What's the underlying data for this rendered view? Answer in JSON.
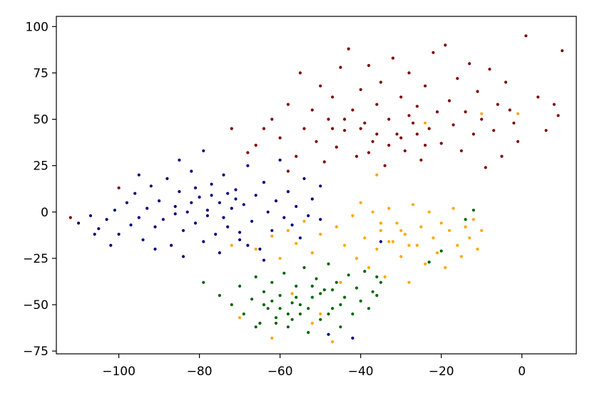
{
  "chart_data": {
    "type": "scatter",
    "title": "",
    "xlabel": "",
    "ylabel": "",
    "xlim": [
      -115.5,
      13.5
    ],
    "ylim": [
      -76.5,
      105.5
    ],
    "xticks": [
      -100,
      -80,
      -60,
      -40,
      -20,
      0
    ],
    "yticks": [
      -75,
      -50,
      -25,
      0,
      25,
      50,
      75,
      100
    ],
    "xtick_labels": [
      "−100",
      "−80",
      "−60",
      "−40",
      "−20",
      "0"
    ],
    "ytick_labels": [
      "−75",
      "−50",
      "−25",
      "0",
      "25",
      "50",
      "75",
      "100"
    ],
    "grid": false,
    "legend": "none",
    "series": [
      {
        "color": "#00007f",
        "points": [
          [
            -110,
            -6
          ],
          [
            -107,
            -2
          ],
          [
            -105,
            -9
          ],
          [
            -103,
            -4
          ],
          [
            -101,
            1
          ],
          [
            -100,
            -12
          ],
          [
            -98,
            5
          ],
          [
            -97,
            -7
          ],
          [
            -96,
            10
          ],
          [
            -95,
            -3
          ],
          [
            -94,
            -15
          ],
          [
            -93,
            2
          ],
          [
            -92,
            14
          ],
          [
            -91,
            -8
          ],
          [
            -90,
            6
          ],
          [
            -89,
            -4
          ],
          [
            -88,
            18
          ],
          [
            -87,
            -18
          ],
          [
            -86,
            3
          ],
          [
            -85,
            11
          ],
          [
            -84,
            -10
          ],
          [
            -83,
            0
          ],
          [
            -82,
            22
          ],
          [
            -81,
            -6
          ],
          [
            -80,
            8
          ],
          [
            -79,
            33
          ],
          [
            -78,
            -2
          ],
          [
            -77,
            15
          ],
          [
            -76,
            -12
          ],
          [
            -75,
            5
          ],
          [
            -74,
            20
          ],
          [
            -73,
            -8
          ],
          [
            -72,
            2
          ],
          [
            -71,
            12
          ],
          [
            -70,
            -15
          ],
          [
            -69,
            4
          ],
          [
            -68,
            25
          ],
          [
            -67,
            -5
          ],
          [
            -66,
            9
          ],
          [
            -65,
            -20
          ],
          [
            -64,
            16
          ],
          [
            -63,
            0
          ],
          [
            -62,
            -10
          ],
          [
            -61,
            6
          ],
          [
            -60,
            28
          ],
          [
            -59,
            -3
          ],
          [
            -58,
            11
          ],
          [
            -57,
            -7
          ],
          [
            -56,
            3
          ],
          [
            -55,
            -14
          ],
          [
            -54,
            18
          ],
          [
            -53,
            -2
          ],
          [
            -52,
            7
          ],
          [
            -50,
            -4
          ],
          [
            -48,
            -66
          ],
          [
            -42,
            -68
          ],
          [
            -35,
            -16
          ],
          [
            -50,
            14
          ],
          [
            -85,
            28
          ],
          [
            -95,
            20
          ],
          [
            -106,
            -12
          ],
          [
            -102,
            -18
          ],
          [
            -91,
            -20
          ],
          [
            -84,
            -24
          ],
          [
            -79,
            -16
          ],
          [
            -75,
            -22
          ],
          [
            -70,
            -11
          ],
          [
            -68,
            -18
          ],
          [
            -64,
            -26
          ],
          [
            -86,
            -1
          ],
          [
            -82,
            5
          ],
          [
            -78,
            1
          ],
          [
            -74,
            -3
          ],
          [
            -71,
            7
          ],
          [
            -77,
            9
          ],
          [
            -81,
            13
          ],
          [
            -73,
            10
          ]
        ]
      },
      {
        "color": "#7f0000",
        "points": [
          [
            -112,
            -3
          ],
          [
            -100,
            13
          ],
          [
            -68,
            32
          ],
          [
            -66,
            36
          ],
          [
            -64,
            45
          ],
          [
            -62,
            50
          ],
          [
            -60,
            40
          ],
          [
            -58,
            58
          ],
          [
            -56,
            30
          ],
          [
            -55,
            75
          ],
          [
            -54,
            45
          ],
          [
            -52,
            55
          ],
          [
            -51,
            38
          ],
          [
            -50,
            68
          ],
          [
            -49,
            27
          ],
          [
            -48,
            50
          ],
          [
            -47,
            62
          ],
          [
            -46,
            35
          ],
          [
            -45,
            78
          ],
          [
            -44,
            44
          ],
          [
            -43,
            88
          ],
          [
            -42,
            55
          ],
          [
            -41,
            30
          ],
          [
            -40,
            66
          ],
          [
            -39,
            48
          ],
          [
            -38,
            79
          ],
          [
            -37,
            38
          ],
          [
            -36,
            58
          ],
          [
            -35,
            70
          ],
          [
            -34,
            25
          ],
          [
            -33,
            50
          ],
          [
            -32,
            83
          ],
          [
            -31,
            42
          ],
          [
            -30,
            62
          ],
          [
            -29,
            33
          ],
          [
            -28,
            75
          ],
          [
            -27,
            48
          ],
          [
            -26,
            57
          ],
          [
            -25,
            28
          ],
          [
            -24,
            68
          ],
          [
            -23,
            45
          ],
          [
            -22,
            86
          ],
          [
            -21,
            54
          ],
          [
            -20,
            37
          ],
          [
            -19,
            90
          ],
          [
            -18,
            60
          ],
          [
            -17,
            47
          ],
          [
            -16,
            72
          ],
          [
            -15,
            33
          ],
          [
            -14,
            54
          ],
          [
            -13,
            80
          ],
          [
            -12,
            42
          ],
          [
            -11,
            65
          ],
          [
            -10,
            50
          ],
          [
            -9,
            24
          ],
          [
            -8,
            77
          ],
          [
            -7,
            44
          ],
          [
            -6,
            58
          ],
          [
            -5,
            30
          ],
          [
            -4,
            70
          ],
          [
            -3,
            55
          ],
          [
            -2,
            48
          ],
          [
            -1,
            38
          ],
          [
            1,
            95
          ],
          [
            4,
            62
          ],
          [
            6,
            44
          ],
          [
            8,
            58
          ],
          [
            9,
            52
          ],
          [
            10,
            87
          ],
          [
            -72,
            45
          ],
          [
            -58,
            22
          ],
          [
            -40,
            45
          ],
          [
            -36,
            42
          ],
          [
            -30,
            40
          ],
          [
            -28,
            52
          ],
          [
            -24,
            36
          ],
          [
            -38,
            32
          ],
          [
            -33,
            36
          ],
          [
            -26,
            42
          ],
          [
            -44,
            50
          ],
          [
            -47,
            45
          ]
        ]
      },
      {
        "color": "#ffa500",
        "points": [
          [
            -72,
            -18
          ],
          [
            -66,
            -20
          ],
          [
            -62,
            -13
          ],
          [
            -60,
            -25
          ],
          [
            -58,
            -10
          ],
          [
            -56,
            -17
          ],
          [
            -54,
            -5
          ],
          [
            -52,
            -22
          ],
          [
            -50,
            -12
          ],
          [
            -48,
            -28
          ],
          [
            -46,
            -8
          ],
          [
            -44,
            -18
          ],
          [
            -42,
            -2
          ],
          [
            -41,
            -25
          ],
          [
            -40,
            5
          ],
          [
            -39,
            -14
          ],
          [
            -38,
            -30
          ],
          [
            -37,
            0
          ],
          [
            -36,
            -20
          ],
          [
            -35,
            -10
          ],
          [
            -34,
            -35
          ],
          [
            -33,
            2
          ],
          [
            -32,
            -16
          ],
          [
            -31,
            -6
          ],
          [
            -30,
            -24
          ],
          [
            -29,
            -12
          ],
          [
            -28,
            -38
          ],
          [
            -27,
            4
          ],
          [
            -26,
            -18
          ],
          [
            -25,
            -8
          ],
          [
            -24,
            -28
          ],
          [
            -23,
            0
          ],
          [
            -22,
            -14
          ],
          [
            -21,
            -22
          ],
          [
            -20,
            -6
          ],
          [
            -19,
            -30
          ],
          [
            -18,
            -10
          ],
          [
            -17,
            2
          ],
          [
            -16,
            -18
          ],
          [
            -15,
            -24
          ],
          [
            -14,
            -8
          ],
          [
            -13,
            -14
          ],
          [
            -12,
            -4
          ],
          [
            -11,
            -20
          ],
          [
            -10,
            -10
          ],
          [
            -62,
            -68
          ],
          [
            -47,
            -70
          ],
          [
            -36,
            20
          ],
          [
            -24,
            48
          ],
          [
            -10,
            53
          ],
          [
            -1,
            53
          ],
          [
            -70,
            -57
          ],
          [
            -52,
            -60
          ],
          [
            -57,
            -44
          ],
          [
            -45,
            -38
          ],
          [
            -50,
            -55
          ],
          [
            -33,
            -16
          ],
          [
            -30,
            -10
          ],
          [
            -28,
            -18
          ],
          [
            -35,
            -6
          ]
        ]
      },
      {
        "color": "#006400",
        "points": [
          [
            -79,
            -38
          ],
          [
            -75,
            -45
          ],
          [
            -72,
            -50
          ],
          [
            -70,
            -40
          ],
          [
            -69,
            -55
          ],
          [
            -67,
            -47
          ],
          [
            -66,
            -35
          ],
          [
            -65,
            -60
          ],
          [
            -64,
            -43
          ],
          [
            -63,
            -52
          ],
          [
            -62,
            -38
          ],
          [
            -61,
            -57
          ],
          [
            -60,
            -45
          ],
          [
            -59,
            -33
          ],
          [
            -58,
            -62
          ],
          [
            -57,
            -49
          ],
          [
            -56,
            -40
          ],
          [
            -55,
            -55
          ],
          [
            -54,
            -30
          ],
          [
            -53,
            -65
          ],
          [
            -52,
            -46
          ],
          [
            -51,
            -36
          ],
          [
            -50,
            -58
          ],
          [
            -49,
            -42
          ],
          [
            -48,
            -28
          ],
          [
            -47,
            -52
          ],
          [
            -46,
            -38
          ],
          [
            -45,
            -62
          ],
          [
            -44,
            -46
          ],
          [
            -43,
            -34
          ],
          [
            -42,
            -55
          ],
          [
            -41,
            -41
          ],
          [
            -40,
            -48
          ],
          [
            -39,
            -32
          ],
          [
            -38,
            -52
          ],
          [
            -37,
            -43
          ],
          [
            -36,
            -45
          ],
          [
            -35,
            -38
          ],
          [
            -36,
            -35
          ],
          [
            -23,
            -27
          ],
          [
            -20,
            -21
          ],
          [
            -14,
            -4
          ],
          [
            -12,
            1
          ],
          [
            -55,
            -50
          ],
          [
            -58,
            -55
          ],
          [
            -60,
            -52
          ],
          [
            -62,
            -48
          ],
          [
            -56,
            -46
          ],
          [
            -53,
            -52
          ],
          [
            -50,
            -44
          ],
          [
            -57,
            -58
          ],
          [
            -61,
            -60
          ],
          [
            -47,
            -42
          ],
          [
            -52,
            -40
          ],
          [
            -64,
            -50
          ],
          [
            -66,
            -62
          ],
          [
            -45,
            -50
          ],
          [
            -48,
            -55
          ]
        ]
      }
    ]
  }
}
